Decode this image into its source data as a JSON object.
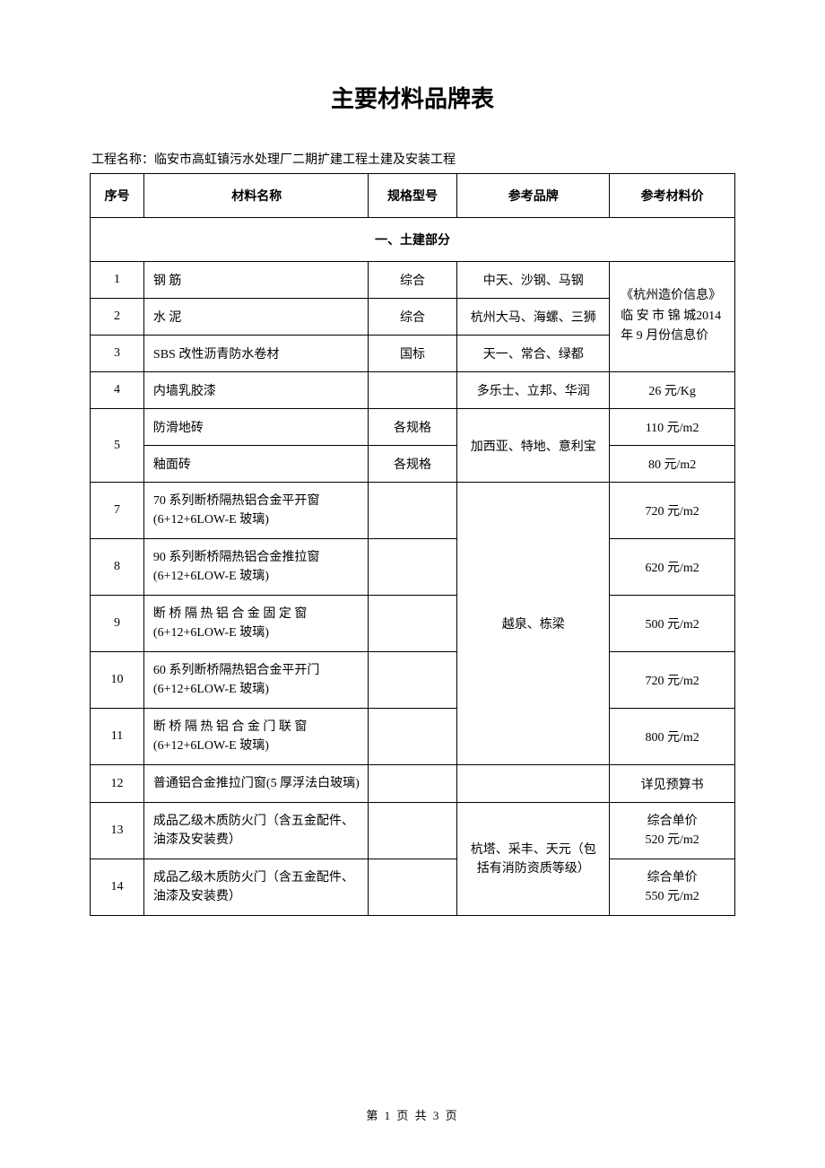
{
  "title": "主要材料品牌表",
  "project_label": "工程名称：临安市高虹镇污水处理厂二期扩建工程土建及安装工程",
  "headers": {
    "seq": "序号",
    "name": "材料名称",
    "spec": "规格型号",
    "brand": "参考品牌",
    "price": "参考材料价"
  },
  "section": "一、土建部分",
  "rows": {
    "r1": {
      "seq": "1",
      "name": "钢 筋",
      "spec": "综合",
      "brand": "中天、沙钢、马钢"
    },
    "r2": {
      "seq": "2",
      "name": "水 泥",
      "spec": "综合",
      "brand": "杭州大马、海螺、三狮"
    },
    "r3": {
      "seq": "3",
      "name": "SBS 改性沥青防水卷材",
      "spec": "国标",
      "brand": "天一、常合、绿都"
    },
    "price_merged_1": "《杭州造价信息》临 安 市 锦 城2014 年 9 月份信息价",
    "r4": {
      "seq": "4",
      "name": "内墙乳胶漆",
      "spec": "",
      "brand": "多乐士、立邦、华润",
      "price": "26 元/Kg"
    },
    "r5a": {
      "seq": "5",
      "name": "防滑地砖",
      "spec": "各规格",
      "price": "110 元/m2"
    },
    "r5b": {
      "name": "釉面砖",
      "spec": "各规格",
      "price": "80 元/m2"
    },
    "brand_tile": "加西亚、特地、意利宝",
    "r7": {
      "seq": "7",
      "name": "70 系列断桥隔热铝合金平开窗(6+12+6LOW-E 玻璃)",
      "price": "720 元/m2"
    },
    "r8": {
      "seq": "8",
      "name": "90 系列断桥隔热铝合金推拉窗(6+12+6LOW-E 玻璃)",
      "price": "620 元/m2"
    },
    "r9": {
      "seq": "9",
      "name": "断 桥 隔 热 铝 合 金 固 定 窗(6+12+6LOW-E 玻璃)",
      "price": "500 元/m2"
    },
    "r10": {
      "seq": "10",
      "name": "60 系列断桥隔热铝合金平开门(6+12+6LOW-E 玻璃)",
      "price": "720 元/m2"
    },
    "r11": {
      "seq": "11",
      "name": "断 桥 隔 热 铝 合 金 门 联 窗(6+12+6LOW-E 玻璃)",
      "price": "800 元/m2"
    },
    "brand_window": "越泉、栋梁",
    "r12": {
      "seq": "12",
      "name": "普通铝合金推拉门窗(5 厚浮法白玻璃)",
      "brand": "",
      "price": "详见预算书"
    },
    "r13": {
      "seq": "13",
      "name": "成品乙级木质防火门（含五金配件、油漆及安装费）",
      "price": "综合单价\n520 元/m2"
    },
    "r14": {
      "seq": "14",
      "name": "成品乙级木质防火门（含五金配件、油漆及安装费）",
      "price": "综合单价\n550 元/m2"
    },
    "brand_door": "杭塔、采丰、天元（包括有消防资质等级）"
  },
  "footer": "第 1 页 共 3 页"
}
